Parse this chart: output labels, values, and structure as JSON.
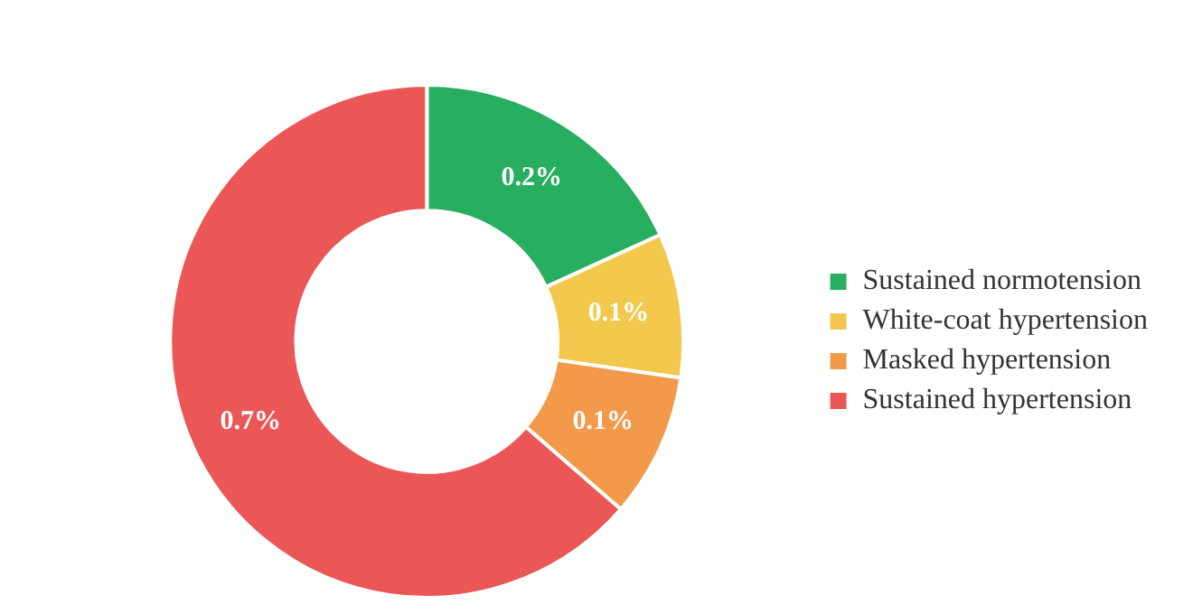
{
  "chart_data": {
    "type": "donut",
    "categories": [
      "Sustained normotension",
      "White-coat hypertension",
      "Masked hypertension",
      "Sustained hypertension"
    ],
    "values": [
      0.2,
      0.1,
      0.1,
      0.7
    ],
    "colors": [
      "#27ae60",
      "#f2c94c",
      "#f2994a",
      "#eb5757"
    ],
    "value_labels": [
      "0.2%",
      "0.1%",
      "0.1%",
      "0.7%"
    ],
    "legend": "right"
  }
}
